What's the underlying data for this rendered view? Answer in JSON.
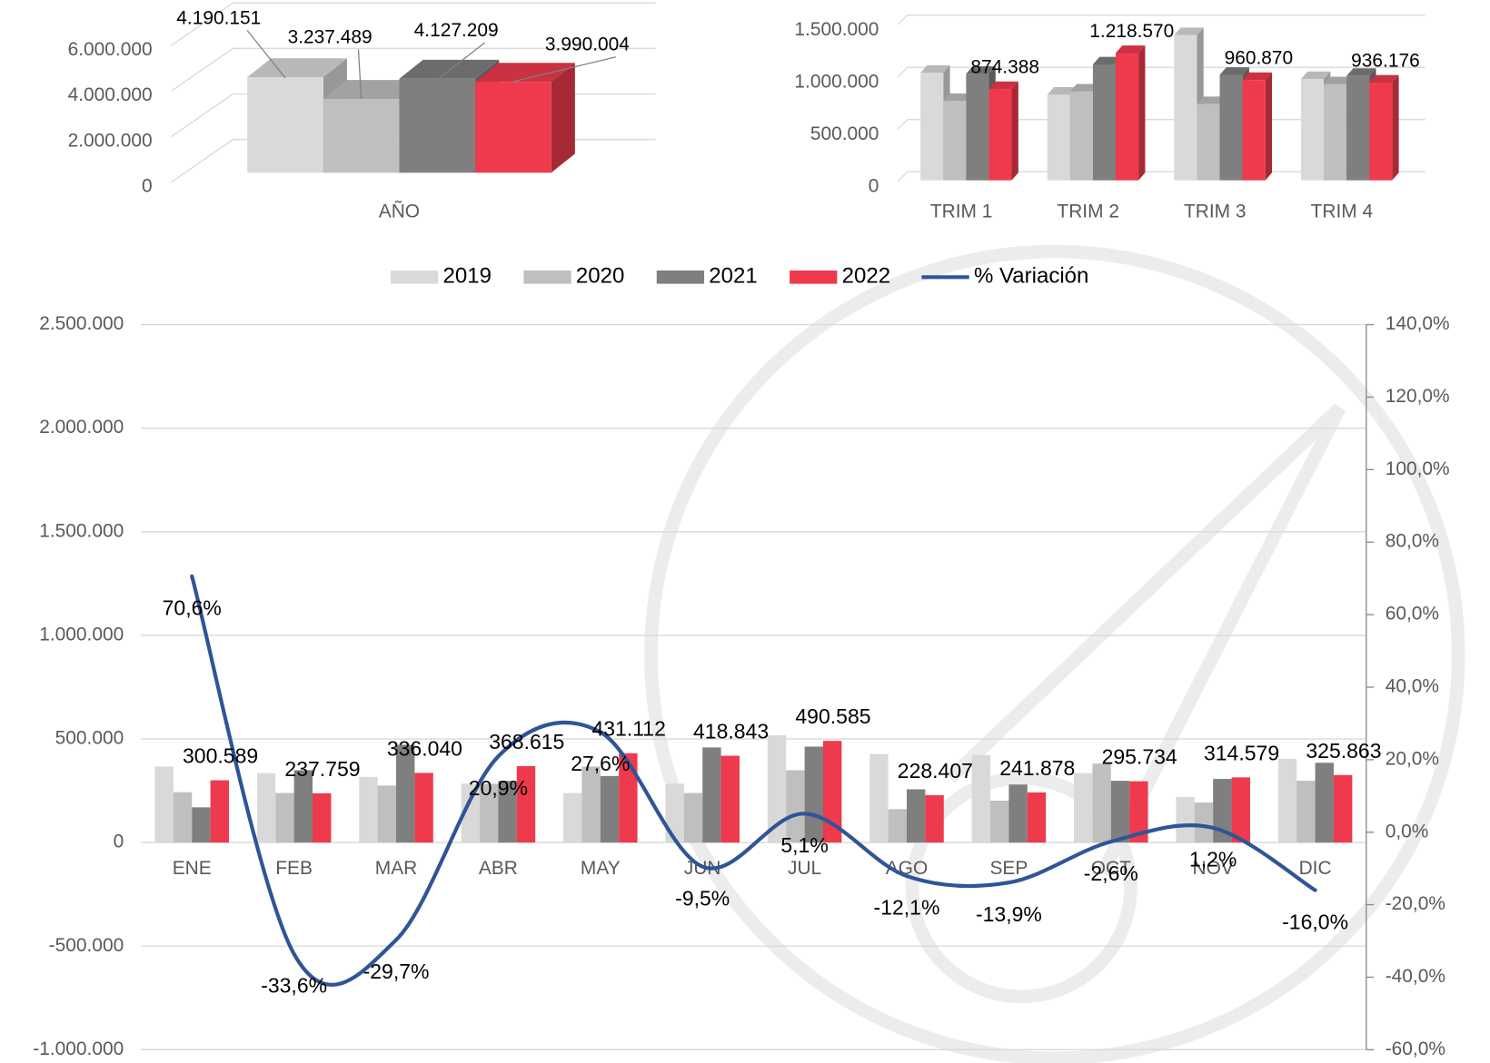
{
  "chart_data": [
    {
      "type": "bar",
      "view": "3d",
      "categories": [
        "AÑO"
      ],
      "series": [
        {
          "color": "#d9d9d9",
          "values": [
            4190151
          ],
          "value_labels": [
            "4.190.151"
          ]
        },
        {
          "color": "#bfbfbf",
          "values": [
            3237489
          ],
          "value_labels": [
            "3.237.489"
          ]
        },
        {
          "color": "#7f7f7f",
          "values": [
            4127209
          ],
          "value_labels": [
            "4.127.209"
          ]
        },
        {
          "color": "#ee3a4c",
          "values": [
            3990004
          ],
          "value_labels": [
            "3.990.004"
          ]
        }
      ],
      "ylim": [
        0,
        6000000
      ],
      "yticks": [
        0,
        {
          "value": 2000000,
          "label": "2.000.000"
        },
        {
          "value": 4000000,
          "label": "4.000.000"
        },
        {
          "value": 6000000,
          "label": "6.000.000"
        }
      ],
      "grid": true
    },
    {
      "type": "bar",
      "view": "3d",
      "categories": [
        "TRIM 1",
        "TRIM 2",
        "TRIM 3",
        "TRIM 4"
      ],
      "series": [
        {
          "color": "#d9d9d9",
          "values": [
            1030000,
            820000,
            1390000,
            970000
          ]
        },
        {
          "color": "#bfbfbf",
          "values": [
            760000,
            850000,
            730000,
            920000
          ]
        },
        {
          "color": "#7f7f7f",
          "values": [
            1020000,
            1110000,
            1010000,
            1000000
          ]
        },
        {
          "color": "#ee3a4c",
          "values": [
            874388,
            1218570,
            960870,
            936176
          ],
          "value_labels": [
            "874.388",
            "1.218.570",
            "960.870",
            "936.176"
          ]
        }
      ],
      "ylim": [
        0,
        1500000
      ],
      "yticks": [
        0,
        {
          "value": 500000,
          "label": "500.000"
        },
        {
          "value": 1000000,
          "label": "1.000.000"
        },
        {
          "value": 1500000,
          "label": "1.500.000"
        }
      ],
      "grid": true
    },
    {
      "type": "combo",
      "legend": "top",
      "categories": [
        "ENE",
        "FEB",
        "MAR",
        "ABR",
        "MAY",
        "JUN",
        "JUL",
        "AGO",
        "SEP",
        "OCT",
        "NOV",
        "DIC"
      ],
      "series": [
        {
          "name": "2019",
          "color": "#d9d9d9",
          "values": [
            367000,
            335000,
            317000,
            284000,
            239000,
            284000,
            518000,
            427000,
            422000,
            335000,
            220000,
            404000
          ]
        },
        {
          "name": "2020",
          "color": "#bfbfbf",
          "values": [
            243000,
            239000,
            275000,
            284000,
            367000,
            239000,
            349000,
            161000,
            202000,
            381000,
            193000,
            298000
          ]
        },
        {
          "name": "2021",
          "color": "#7f7f7f",
          "values": [
            170000,
            349000,
            472000,
            298000,
            321000,
            459000,
            463000,
            257000,
            280000,
            298000,
            307000,
            385000
          ]
        },
        {
          "name": "2022",
          "color": "#ee3a4c",
          "values": [
            300589,
            237759,
            336040,
            368615,
            431112,
            418843,
            490585,
            228407,
            241878,
            295734,
            314579,
            325863
          ],
          "value_labels": [
            "300.589",
            "237.759",
            "336.040",
            "368.615",
            "431.112",
            "418.843",
            "490.585",
            "228.407",
            "241.878",
            "295.734",
            "314.579",
            "325.863"
          ]
        },
        {
          "name": "% Variación",
          "type": "line",
          "axis": "y2",
          "smooth": true,
          "color": "#2f5597",
          "values": [
            70.6,
            -33.6,
            -29.7,
            20.9,
            27.6,
            -9.5,
            5.1,
            -12.1,
            -13.9,
            -2.6,
            1.2,
            -16.0
          ],
          "value_labels": [
            "70,6%",
            "-33,6%",
            "-29,7%",
            "20,9%",
            "27,6%",
            "-9,5%",
            "5,1%",
            "-12,1%",
            "-13,9%",
            "-2,6%",
            "1,2%",
            "-16,0%"
          ]
        }
      ],
      "ylim": [
        -1000000,
        2500000
      ],
      "yticks": [
        {
          "value": -1000000,
          "label": "-1.000.000"
        },
        {
          "value": -500000,
          "label": "-500.000"
        },
        0,
        {
          "value": 500000,
          "label": "500.000"
        },
        {
          "value": 1000000,
          "label": "1.000.000"
        },
        {
          "value": 1500000,
          "label": "1.500.000"
        },
        {
          "value": 2000000,
          "label": "2.000.000"
        },
        {
          "value": 2500000,
          "label": "2.500.000"
        }
      ],
      "y2lim": [
        -60,
        140
      ],
      "y2ticks": [
        {
          "value": -60,
          "label": "-60,0%"
        },
        {
          "value": -40,
          "label": "-40,0%"
        },
        {
          "value": -20,
          "label": "-20,0%"
        },
        {
          "value": 0,
          "label": "0,0%"
        },
        {
          "value": 20,
          "label": "20,0%"
        },
        {
          "value": 40,
          "label": "40,0%"
        },
        {
          "value": 60,
          "label": "60,0%"
        },
        {
          "value": 80,
          "label": "80,0%"
        },
        {
          "value": 100,
          "label": "100,0%"
        },
        {
          "value": 120,
          "label": "120,0%"
        },
        {
          "value": 140,
          "label": "140,0%"
        }
      ],
      "grid": true
    }
  ]
}
